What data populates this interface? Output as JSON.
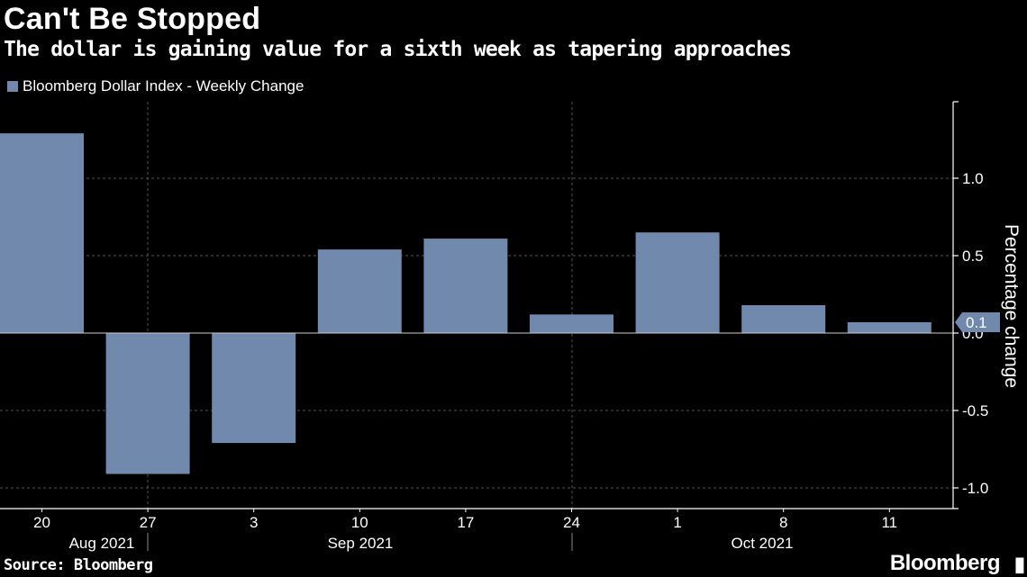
{
  "title": "Can't Be Stopped",
  "subtitle": "The dollar is gaining value for a sixth week as tapering approaches",
  "legend_label": "Bloomberg Dollar Index - Weekly Change",
  "source": "Source: Bloomberg",
  "brand": "Bloomberg",
  "colors": {
    "bar": "#7089ad",
    "background": "#000000",
    "grid": "#555555",
    "text": "#ffffff"
  },
  "chart_data": {
    "type": "bar",
    "title": "Can't Be Stopped",
    "subtitle": "The dollar is gaining value for a sixth week as tapering approaches",
    "categories": [
      "20",
      "27",
      "3",
      "10",
      "17",
      "24",
      "1",
      "8",
      "11"
    ],
    "month_labels": [
      "Aug 2021",
      "Sep 2021",
      "Oct 2021"
    ],
    "series": [
      {
        "name": "Bloomberg Dollar Index - Weekly Change",
        "values": [
          1.29,
          -0.91,
          -0.71,
          0.54,
          0.61,
          0.12,
          0.65,
          0.18,
          0.07
        ]
      }
    ],
    "ylabel": "Percentage change",
    "y_ticks": [
      "1.0",
      "0.5",
      "0.0",
      "-0.5",
      "-1.0"
    ],
    "ylim": [
      -1.1,
      1.5
    ],
    "last_value_label": "0.1",
    "grid": "vertical dashed at month boundaries",
    "axis_position": "right"
  }
}
